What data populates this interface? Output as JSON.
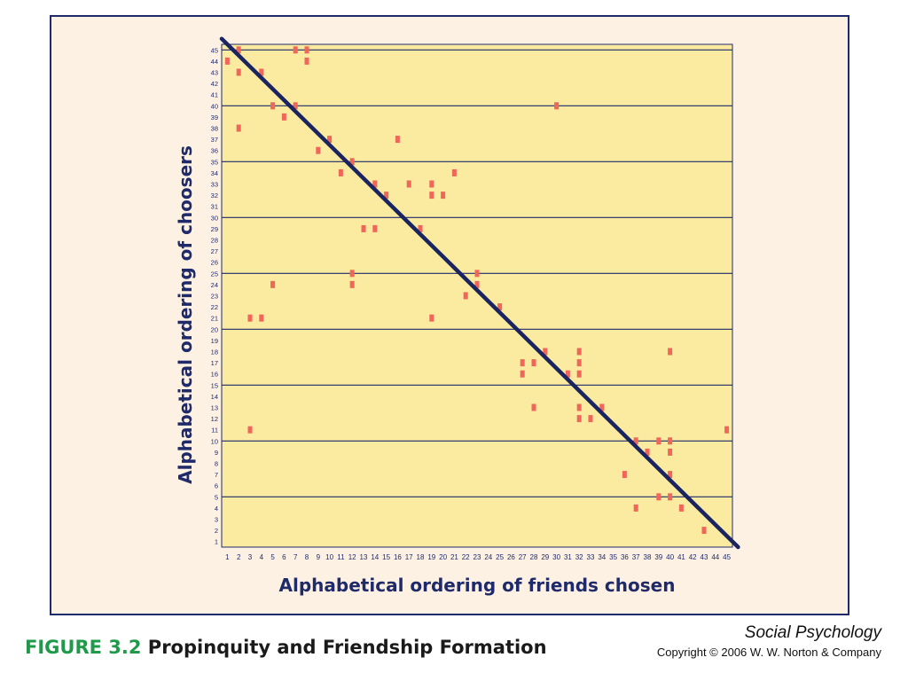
{
  "chart_data": {
    "type": "scatter",
    "xlabel": "Alphabetical ordering of friends chosen",
    "ylabel": "Alphabetical ordering of choosers",
    "xlim": [
      1,
      45
    ],
    "ylim": [
      1,
      45
    ],
    "x_ticks": [
      1,
      2,
      3,
      4,
      5,
      6,
      7,
      8,
      9,
      10,
      11,
      12,
      13,
      14,
      15,
      16,
      17,
      18,
      19,
      20,
      21,
      22,
      23,
      24,
      25,
      26,
      27,
      28,
      29,
      30,
      31,
      32,
      33,
      34,
      35,
      36,
      37,
      38,
      39,
      40,
      41,
      42,
      43,
      44,
      45
    ],
    "y_ticks": [
      1,
      2,
      3,
      4,
      5,
      6,
      7,
      8,
      9,
      10,
      11,
      12,
      13,
      14,
      15,
      16,
      17,
      18,
      19,
      20,
      21,
      22,
      23,
      24,
      25,
      26,
      27,
      28,
      29,
      30,
      31,
      32,
      33,
      34,
      35,
      36,
      37,
      38,
      39,
      40,
      41,
      42,
      43,
      44,
      45
    ],
    "horizontal_gridlines_at": [
      5,
      10,
      15,
      20,
      25,
      30,
      35,
      40,
      45
    ],
    "diagonal_line": {
      "from": [
        0.5,
        46
      ],
      "to": [
        46,
        0.5
      ],
      "color": "#1a2460"
    },
    "marker_color": "#f0665a",
    "points": [
      [
        1,
        44
      ],
      [
        2,
        45
      ],
      [
        2,
        43
      ],
      [
        2,
        38
      ],
      [
        4,
        43
      ],
      [
        5,
        40
      ],
      [
        6,
        39
      ],
      [
        7,
        45
      ],
      [
        7,
        40
      ],
      [
        8,
        45
      ],
      [
        8,
        44
      ],
      [
        9,
        36
      ],
      [
        10,
        37
      ],
      [
        11,
        34
      ],
      [
        12,
        35
      ],
      [
        12,
        25
      ],
      [
        12,
        24
      ],
      [
        13,
        29
      ],
      [
        14,
        33
      ],
      [
        14,
        29
      ],
      [
        15,
        32
      ],
      [
        16,
        37
      ],
      [
        17,
        33
      ],
      [
        18,
        29
      ],
      [
        19,
        33
      ],
      [
        19,
        32
      ],
      [
        19,
        21
      ],
      [
        20,
        32
      ],
      [
        21,
        34
      ],
      [
        22,
        23
      ],
      [
        23,
        25
      ],
      [
        23,
        24
      ],
      [
        25,
        22
      ],
      [
        3,
        21
      ],
      [
        4,
        21
      ],
      [
        5,
        24
      ],
      [
        3,
        11
      ],
      [
        30,
        40
      ],
      [
        27,
        17
      ],
      [
        27,
        16
      ],
      [
        28,
        17
      ],
      [
        28,
        13
      ],
      [
        29,
        18
      ],
      [
        31,
        16
      ],
      [
        32,
        18
      ],
      [
        32,
        17
      ],
      [
        32,
        16
      ],
      [
        32,
        13
      ],
      [
        32,
        12
      ],
      [
        33,
        12
      ],
      [
        34,
        13
      ],
      [
        36,
        7
      ],
      [
        37,
        10
      ],
      [
        37,
        4
      ],
      [
        38,
        9
      ],
      [
        39,
        10
      ],
      [
        39,
        5
      ],
      [
        40,
        18
      ],
      [
        40,
        10
      ],
      [
        40,
        9
      ],
      [
        40,
        7
      ],
      [
        40,
        5
      ],
      [
        41,
        4
      ],
      [
        43,
        2
      ],
      [
        45,
        11
      ]
    ]
  },
  "caption": {
    "figure_label": "FIGURE 3.2",
    "figure_title": "Propinquity and Friendship Formation"
  },
  "credits": {
    "book_title": "Social Psychology",
    "copyright": "Copyright © 2006 W. W. Norton & Company"
  }
}
